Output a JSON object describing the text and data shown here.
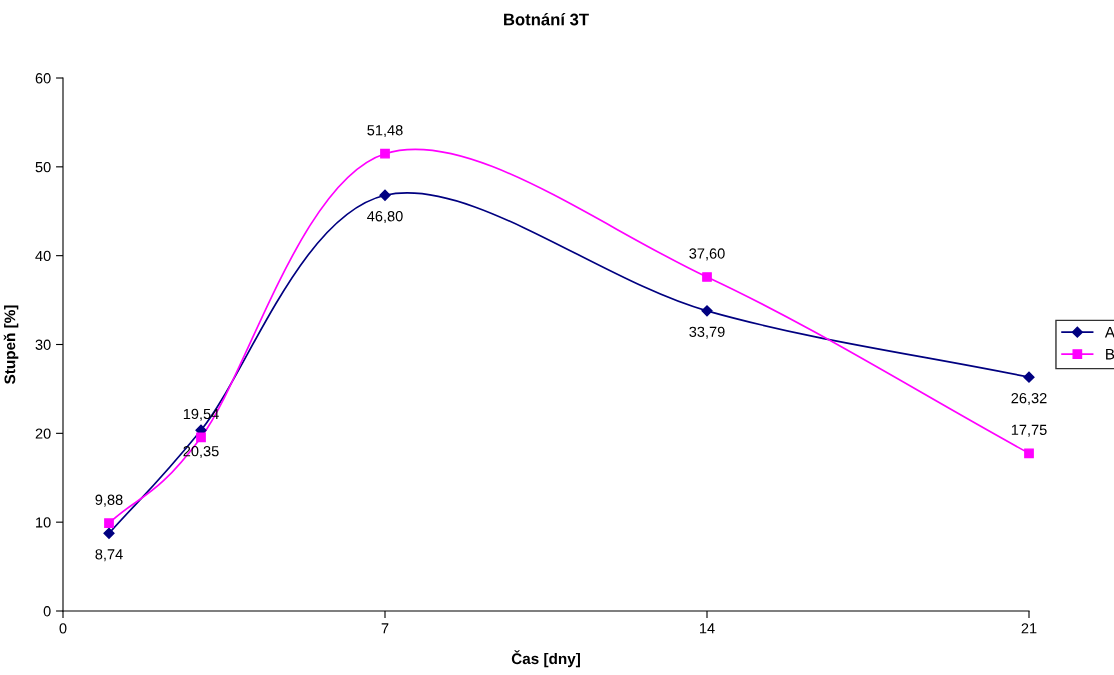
{
  "chart_data": {
    "type": "line",
    "title": "Botnání 3T",
    "xlabel": "Čas [dny]",
    "ylabel": "Stupeň [%]",
    "x": [
      1,
      3,
      7,
      14,
      21
    ],
    "series": [
      {
        "name": "A",
        "color": "#000080",
        "marker": "diamond",
        "values": [
          8.74,
          20.35,
          46.8,
          33.79,
          26.32
        ],
        "value_labels": [
          "8,74",
          "20,35",
          "46,80",
          "33,79",
          "26,32"
        ]
      },
      {
        "name": "B",
        "color": "#ff00ff",
        "marker": "square",
        "values": [
          9.88,
          19.54,
          51.48,
          37.6,
          17.75
        ],
        "value_labels": [
          "9,88",
          "19,54",
          "51,48",
          "37,60",
          "17,75"
        ]
      }
    ],
    "xlim": [
      0,
      21
    ],
    "xticks": [
      0,
      7,
      14,
      21
    ],
    "ylim": [
      0,
      60
    ],
    "yticks": [
      0,
      10,
      20,
      30,
      40,
      50,
      60
    ],
    "grid": false,
    "legend": "right"
  }
}
